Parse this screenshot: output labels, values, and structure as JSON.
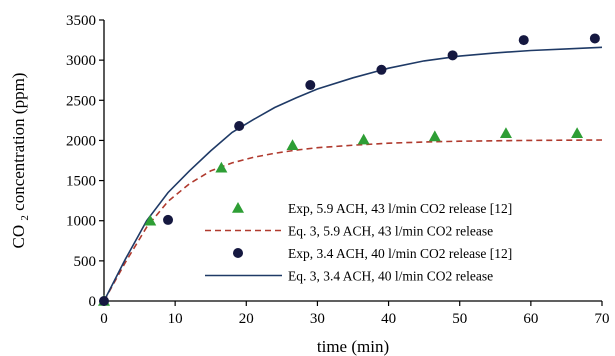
{
  "chart_data": {
    "type": "scatter",
    "title": "",
    "xlabel": "time (min)",
    "ylabel": {
      "prefix": "CO",
      "subscript": "2",
      "suffix": " concentration (ppm)"
    },
    "xlim": [
      0,
      70
    ],
    "ylim": [
      0,
      3500
    ],
    "xticks": [
      0,
      10,
      20,
      30,
      40,
      50,
      60,
      70
    ],
    "yticks": [
      0,
      500,
      1000,
      1500,
      2000,
      2500,
      3000,
      3500
    ],
    "grid": false,
    "legend_position": "bottom-right",
    "series": [
      {
        "name": "Exp, 5.9 ACH, 43 l/min CO2 release [12]",
        "kind": "markers",
        "marker": "triangle",
        "color": "#2e9e35",
        "points": [
          [
            0,
            0
          ],
          [
            6.5,
            1000
          ],
          [
            16.5,
            1660
          ],
          [
            26.5,
            1940
          ],
          [
            36.5,
            2010
          ],
          [
            46.5,
            2050
          ],
          [
            56.5,
            2090
          ],
          [
            66.5,
            2090
          ]
        ]
      },
      {
        "name": "Eq. 3, 5.9 ACH, 43 l/min CO2 release",
        "kind": "line",
        "style": "dashed",
        "color": "#b03a2e",
        "points": [
          [
            0,
            0
          ],
          [
            3,
            480
          ],
          [
            6,
            920
          ],
          [
            9,
            1240
          ],
          [
            12,
            1460
          ],
          [
            15,
            1620
          ],
          [
            18,
            1720
          ],
          [
            21,
            1790
          ],
          [
            24,
            1840
          ],
          [
            27,
            1880
          ],
          [
            30,
            1910
          ],
          [
            35,
            1940
          ],
          [
            40,
            1965
          ],
          [
            45,
            1980
          ],
          [
            50,
            1990
          ],
          [
            55,
            1995
          ],
          [
            60,
            2000
          ],
          [
            65,
            2003
          ],
          [
            70,
            2005
          ]
        ]
      },
      {
        "name": "Exp, 3.4 ACH, 40 l/min CO2 release [12]",
        "kind": "markers",
        "marker": "circle",
        "color": "#151840",
        "points": [
          [
            0,
            0
          ],
          [
            9,
            1010
          ],
          [
            19,
            2180
          ],
          [
            29,
            2690
          ],
          [
            39,
            2880
          ],
          [
            49,
            3060
          ],
          [
            59,
            3250
          ],
          [
            69,
            3270
          ]
        ]
      },
      {
        "name": "Eq. 3, 3.4 ACH, 40 l/min CO2 release",
        "kind": "line",
        "style": "solid",
        "color": "#1f3a66",
        "points": [
          [
            0,
            0
          ],
          [
            3,
            520
          ],
          [
            6,
            1000
          ],
          [
            9,
            1350
          ],
          [
            12,
            1620
          ],
          [
            15,
            1870
          ],
          [
            18,
            2100
          ],
          [
            21,
            2260
          ],
          [
            24,
            2410
          ],
          [
            27,
            2530
          ],
          [
            30,
            2640
          ],
          [
            35,
            2780
          ],
          [
            40,
            2900
          ],
          [
            45,
            2990
          ],
          [
            50,
            3050
          ],
          [
            55,
            3090
          ],
          [
            60,
            3120
          ],
          [
            65,
            3140
          ],
          [
            70,
            3160
          ]
        ]
      }
    ]
  }
}
